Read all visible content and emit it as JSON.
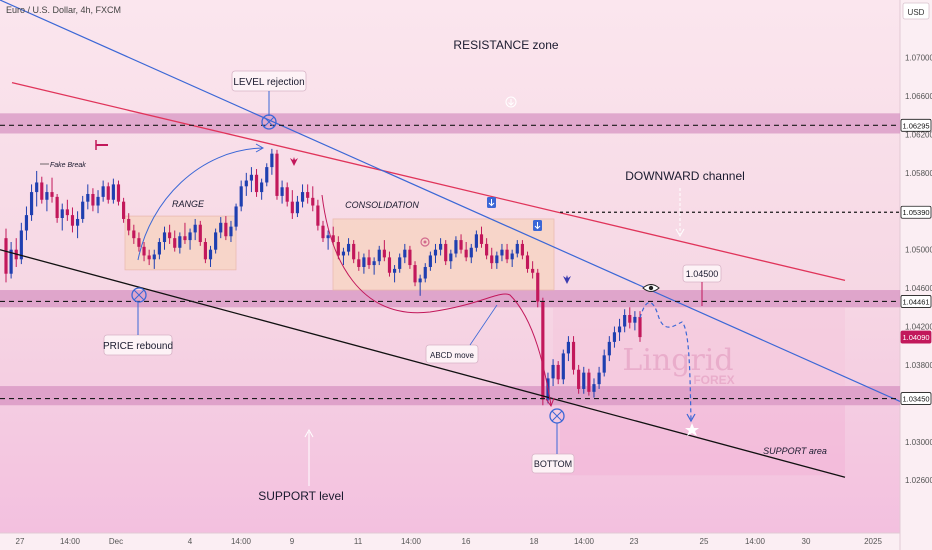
{
  "header": {
    "title": "Euro / U.S. Dollar, 4h, FXCM",
    "currency": "USD"
  },
  "colors": {
    "bull": "#1f3fb0",
    "bear": "#c2185b",
    "resistance_line": "#e0345a",
    "channel_line": "#3b67d6",
    "support_line": "#111111",
    "zone": "#d590c0",
    "box": "#f8d5c5",
    "price_marker": "#c2185b"
  },
  "chart_data": {
    "type": "candlestick",
    "title": "Euro / U.S. Dollar, 4h, FXCM",
    "ylim": [
      1.0205,
      1.076
    ],
    "yticks": [
      "1.07000",
      "1.06600",
      "1.06200",
      "1.05800",
      "1.05000",
      "1.04600",
      "1.04200",
      "1.03800",
      "1.03000",
      "1.02600"
    ],
    "xticks": [
      "27",
      "14:00",
      "Dec",
      "4",
      "14:00",
      "9",
      "11",
      "14:00",
      "16",
      "18",
      "14:00",
      "23",
      "25",
      "14:00",
      "30",
      "2025"
    ],
    "price_labels": [
      {
        "text": "1.06295",
        "value": 1.06295
      },
      {
        "text": "1.05390",
        "value": 1.0539
      },
      {
        "text": "1.04461",
        "value": 1.04461
      },
      {
        "text": "1.04090",
        "value": 1.0409,
        "current": true
      },
      {
        "text": "1.03450",
        "value": 1.0345
      }
    ],
    "zones": [
      {
        "top": 1.0642,
        "bottom": 1.0621
      },
      {
        "top": 1.0458,
        "bottom": 1.044
      },
      {
        "top": 1.0358,
        "bottom": 1.0338
      }
    ],
    "boxes": [
      {
        "label": "RANGE",
        "x0": 125,
        "x1": 236,
        "top": 1.0535,
        "bottom": 1.0479
      },
      {
        "label": "CONSOLIDATION",
        "x0": 333,
        "x1": 554,
        "top": 1.0532,
        "bottom": 1.0458
      }
    ],
    "candles": [
      [
        1.0512,
        1.0522,
        1.0466,
        1.0475
      ],
      [
        1.0475,
        1.0508,
        1.047,
        1.05
      ],
      [
        1.05,
        1.0512,
        1.0482,
        1.049
      ],
      [
        1.049,
        1.0528,
        1.0485,
        1.052
      ],
      [
        1.052,
        1.0545,
        1.051,
        1.0536
      ],
      [
        1.0536,
        1.0568,
        1.053,
        1.056
      ],
      [
        1.056,
        1.0582,
        1.0545,
        1.057
      ],
      [
        1.057,
        1.0576,
        1.0548,
        1.0552
      ],
      [
        1.0552,
        1.0568,
        1.054,
        1.056
      ],
      [
        1.056,
        1.0575,
        1.0549,
        1.0555
      ],
      [
        1.0555,
        1.0558,
        1.0528,
        1.0533
      ],
      [
        1.0533,
        1.0548,
        1.052,
        1.0542
      ],
      [
        1.0542,
        1.0552,
        1.053,
        1.0536
      ],
      [
        1.0536,
        1.0544,
        1.0518,
        1.0525
      ],
      [
        1.0525,
        1.054,
        1.0512,
        1.0532
      ],
      [
        1.0532,
        1.0556,
        1.0528,
        1.055
      ],
      [
        1.055,
        1.0568,
        1.0542,
        1.0558
      ],
      [
        1.0558,
        1.0564,
        1.054,
        1.0546
      ],
      [
        1.0546,
        1.0562,
        1.0538,
        1.0555
      ],
      [
        1.0555,
        1.0572,
        1.055,
        1.0566
      ],
      [
        1.0566,
        1.057,
        1.0548,
        1.0552
      ],
      [
        1.0552,
        1.0574,
        1.0548,
        1.0568
      ],
      [
        1.0568,
        1.0572,
        1.0546,
        1.055
      ],
      [
        1.055,
        1.0554,
        1.0528,
        1.0532
      ],
      [
        1.0532,
        1.0538,
        1.0515,
        1.052
      ],
      [
        1.052,
        1.0526,
        1.0506,
        1.0512
      ],
      [
        1.0512,
        1.0518,
        1.0498,
        1.0503
      ],
      [
        1.0503,
        1.0508,
        1.0488,
        1.0494
      ],
      [
        1.0494,
        1.05,
        1.0484,
        1.049
      ],
      [
        1.049,
        1.05,
        1.048,
        1.0495
      ],
      [
        1.0495,
        1.0512,
        1.049,
        1.0508
      ],
      [
        1.0508,
        1.0524,
        1.05,
        1.0518
      ],
      [
        1.0518,
        1.0526,
        1.0506,
        1.0512
      ],
      [
        1.0512,
        1.052,
        1.0498,
        1.0502
      ],
      [
        1.0502,
        1.0518,
        1.0496,
        1.0514
      ],
      [
        1.0514,
        1.0528,
        1.0506,
        1.051
      ],
      [
        1.051,
        1.0522,
        1.05,
        1.0518
      ],
      [
        1.0518,
        1.0532,
        1.051,
        1.0526
      ],
      [
        1.0526,
        1.053,
        1.0504,
        1.0508
      ],
      [
        1.0508,
        1.0512,
        1.0486,
        1.049
      ],
      [
        1.049,
        1.0504,
        1.0482,
        1.05
      ],
      [
        1.05,
        1.0522,
        1.0496,
        1.0518
      ],
      [
        1.0518,
        1.0534,
        1.0512,
        1.0528
      ],
      [
        1.0528,
        1.0535,
        1.051,
        1.0514
      ],
      [
        1.0514,
        1.053,
        1.0508,
        1.0524
      ],
      [
        1.0524,
        1.0548,
        1.052,
        1.0545
      ],
      [
        1.0545,
        1.0572,
        1.054,
        1.0566
      ],
      [
        1.0566,
        1.058,
        1.0556,
        1.0572
      ],
      [
        1.0572,
        1.0586,
        1.056,
        1.0578
      ],
      [
        1.0578,
        1.0584,
        1.0555,
        1.056
      ],
      [
        1.056,
        1.0574,
        1.0552,
        1.057
      ],
      [
        1.057,
        1.059,
        1.0566,
        1.0586
      ],
      [
        1.0586,
        1.0605,
        1.0578,
        1.06
      ],
      [
        1.06,
        1.0604,
        1.0552,
        1.0556
      ],
      [
        1.0556,
        1.0572,
        1.0548,
        1.0565
      ],
      [
        1.0565,
        1.057,
        1.0545,
        1.055
      ],
      [
        1.055,
        1.0562,
        1.0532,
        1.0538
      ],
      [
        1.0538,
        1.0556,
        1.0534,
        1.055
      ],
      [
        1.055,
        1.0568,
        1.0544,
        1.056
      ],
      [
        1.056,
        1.0568,
        1.0548,
        1.0554
      ],
      [
        1.0554,
        1.0566,
        1.054,
        1.0546
      ],
      [
        1.0546,
        1.0552,
        1.052,
        1.0525
      ],
      [
        1.0525,
        1.053,
        1.0508,
        1.0512
      ],
      [
        1.0512,
        1.052,
        1.05,
        1.0515
      ],
      [
        1.0515,
        1.0524,
        1.0505,
        1.0508
      ],
      [
        1.0508,
        1.0514,
        1.049,
        1.0494
      ],
      [
        1.0494,
        1.0502,
        1.0484,
        1.0498
      ],
      [
        1.0498,
        1.0512,
        1.0494,
        1.0506
      ],
      [
        1.0506,
        1.051,
        1.0486,
        1.049
      ],
      [
        1.049,
        1.0498,
        1.0478,
        1.0482
      ],
      [
        1.0482,
        1.0496,
        1.0475,
        1.0492
      ],
      [
        1.0492,
        1.05,
        1.048,
        1.0484
      ],
      [
        1.0484,
        1.0492,
        1.0474,
        1.0488
      ],
      [
        1.0488,
        1.0504,
        1.0484,
        1.05
      ],
      [
        1.05,
        1.051,
        1.0488,
        1.0492
      ],
      [
        1.0492,
        1.0498,
        1.0472,
        1.0476
      ],
      [
        1.0476,
        1.0484,
        1.0466,
        1.048
      ],
      [
        1.048,
        1.0496,
        1.0476,
        1.0492
      ],
      [
        1.0492,
        1.0506,
        1.0486,
        1.05
      ],
      [
        1.05,
        1.0504,
        1.048,
        1.0484
      ],
      [
        1.0484,
        1.0488,
        1.0462,
        1.0466
      ],
      [
        1.0466,
        1.0474,
        1.0452,
        1.047
      ],
      [
        1.047,
        1.0486,
        1.0466,
        1.0482
      ],
      [
        1.0482,
        1.0498,
        1.0478,
        1.0494
      ],
      [
        1.0494,
        1.0506,
        1.0486,
        1.05
      ],
      [
        1.05,
        1.0512,
        1.0494,
        1.0506
      ],
      [
        1.0506,
        1.051,
        1.0484,
        1.0488
      ],
      [
        1.0488,
        1.05,
        1.048,
        1.0496
      ],
      [
        1.0496,
        1.0514,
        1.0492,
        1.051
      ],
      [
        1.051,
        1.0516,
        1.0496,
        1.05
      ],
      [
        1.05,
        1.0508,
        1.0488,
        1.0492
      ],
      [
        1.0492,
        1.0506,
        1.0486,
        1.0502
      ],
      [
        1.0502,
        1.052,
        1.0498,
        1.0516
      ],
      [
        1.0516,
        1.0524,
        1.0502,
        1.0506
      ],
      [
        1.0506,
        1.0512,
        1.049,
        1.0494
      ],
      [
        1.0494,
        1.0502,
        1.048,
        1.0486
      ],
      [
        1.0486,
        1.0498,
        1.048,
        1.0494
      ],
      [
        1.0494,
        1.0506,
        1.0488,
        1.05
      ],
      [
        1.05,
        1.0506,
        1.0486,
        1.049
      ],
      [
        1.049,
        1.05,
        1.0482,
        1.0496
      ],
      [
        1.0496,
        1.051,
        1.0492,
        1.0506
      ],
      [
        1.0506,
        1.051,
        1.049,
        1.0494
      ],
      [
        1.0494,
        1.0498,
        1.0476,
        1.048
      ],
      [
        1.048,
        1.0488,
        1.047,
        1.0476
      ],
      [
        1.0476,
        1.048,
        1.044,
        1.0446
      ],
      [
        1.0446,
        1.045,
        1.0338,
        1.0344
      ],
      [
        1.0344,
        1.0372,
        1.034,
        1.0366
      ],
      [
        1.0366,
        1.0386,
        1.0358,
        1.038
      ],
      [
        1.038,
        1.0384,
        1.036,
        1.0365
      ],
      [
        1.0365,
        1.0396,
        1.036,
        1.0392
      ],
      [
        1.0392,
        1.041,
        1.0384,
        1.0404
      ],
      [
        1.0404,
        1.041,
        1.037,
        1.0375
      ],
      [
        1.0375,
        1.038,
        1.035,
        1.0355
      ],
      [
        1.0355,
        1.0378,
        1.035,
        1.0372
      ],
      [
        1.0372,
        1.0376,
        1.0348,
        1.0352
      ],
      [
        1.0352,
        1.0366,
        1.0346,
        1.036
      ],
      [
        1.036,
        1.0378,
        1.0355,
        1.0372
      ],
      [
        1.0372,
        1.0396,
        1.0368,
        1.039
      ],
      [
        1.039,
        1.041,
        1.0384,
        1.0404
      ],
      [
        1.0404,
        1.042,
        1.0398,
        1.0414
      ],
      [
        1.0414,
        1.0428,
        1.0405,
        1.042
      ],
      [
        1.042,
        1.0438,
        1.0414,
        1.0432
      ],
      [
        1.0432,
        1.044,
        1.0418,
        1.0424
      ],
      [
        1.0424,
        1.0436,
        1.0416,
        1.043
      ],
      [
        1.043,
        1.0436,
        1.0404,
        1.0409
      ]
    ],
    "lines": [
      {
        "name": "resistance-line",
        "from": [
          12,
          1.0674
        ],
        "to": [
          845,
          1.0468
        ]
      },
      {
        "name": "channel-line",
        "from": [
          0,
          1.076
        ],
        "to": [
          900,
          1.0342
        ]
      },
      {
        "name": "support-line",
        "from": [
          0,
          1.05
        ],
        "to": [
          845,
          1.0263
        ]
      }
    ],
    "annotations": {
      "resistance_zone": "RESISTANCE zone",
      "level_rejection": "LEVEL rejection",
      "fake_break": "Fake Break",
      "range": "RANGE",
      "consolidation": "CONSOLIDATION",
      "downward_channel": "DOWNWARD channel",
      "target": "1.04500",
      "price_rebound": "PRICE rebound",
      "abcd_move": "ABCD move",
      "support_area": "SUPPORT area",
      "bottom": "BOTTOM",
      "support_level": "SUPPORT level",
      "watermark_main": "Lingrid",
      "watermark_sub": "FOREX"
    }
  }
}
